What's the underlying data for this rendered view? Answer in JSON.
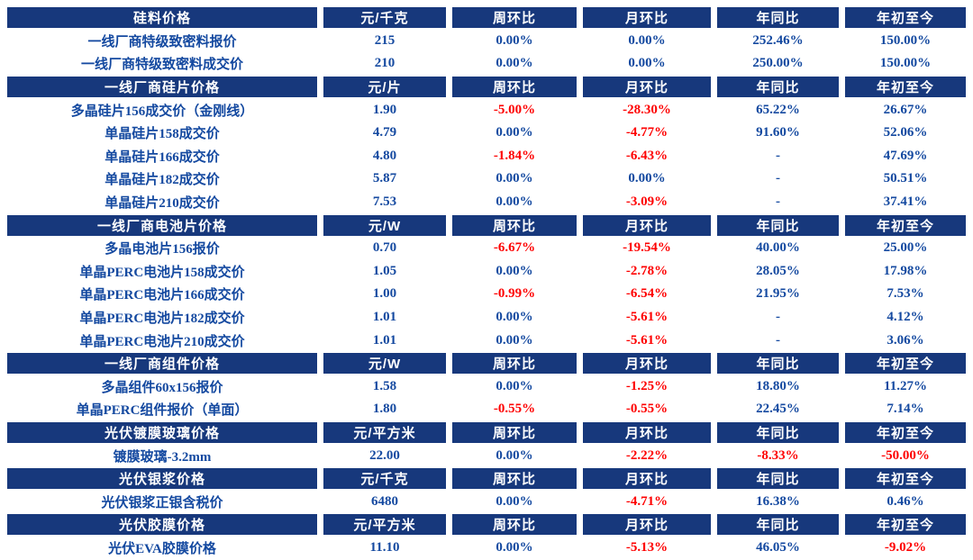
{
  "colors": {
    "header_bg": "#17387C",
    "header_text": "#FFFFFF",
    "value_positive": "#1449A0",
    "value_negative": "#FE0000",
    "page_bg": "#FFFFFF"
  },
  "chart_data": {
    "type": "table",
    "columns": [
      "周环比",
      "月环比",
      "年同比",
      "年初至今"
    ],
    "sections": [
      {
        "title": "硅料价格",
        "unit": "元/千克",
        "rows": [
          {
            "name": "一线厂商特级致密料报价",
            "value": "215",
            "wow": "0.00%",
            "mom": "0.00%",
            "yoy": "252.46%",
            "ytd": "150.00%"
          },
          {
            "name": "一线厂商特级致密料成交价",
            "value": "210",
            "wow": "0.00%",
            "mom": "0.00%",
            "yoy": "250.00%",
            "ytd": "150.00%"
          }
        ]
      },
      {
        "title": "一线厂商硅片价格",
        "unit": "元/片",
        "rows": [
          {
            "name": "多晶硅片156成交价（金刚线）",
            "value": "1.90",
            "wow": "-5.00%",
            "mom": "-28.30%",
            "yoy": "65.22%",
            "ytd": "26.67%"
          },
          {
            "name": "单晶硅片158成交价",
            "value": "4.79",
            "wow": "0.00%",
            "mom": "-4.77%",
            "yoy": "91.60%",
            "ytd": "52.06%"
          },
          {
            "name": "单晶硅片166成交价",
            "value": "4.80",
            "wow": "-1.84%",
            "mom": "-6.43%",
            "yoy": "-",
            "ytd": "47.69%"
          },
          {
            "name": "单晶硅片182成交价",
            "value": "5.87",
            "wow": "0.00%",
            "mom": "0.00%",
            "yoy": "-",
            "ytd": "50.51%"
          },
          {
            "name": "单晶硅片210成交价",
            "value": "7.53",
            "wow": "0.00%",
            "mom": "-3.09%",
            "yoy": "-",
            "ytd": "37.41%"
          }
        ]
      },
      {
        "title": "一线厂商电池片价格",
        "unit": "元/W",
        "rows": [
          {
            "name": "多晶电池片156报价",
            "value": "0.70",
            "wow": "-6.67%",
            "mom": "-19.54%",
            "yoy": "40.00%",
            "ytd": "25.00%"
          },
          {
            "name": "单晶PERC电池片158成交价",
            "value": "1.05",
            "wow": "0.00%",
            "mom": "-2.78%",
            "yoy": "28.05%",
            "ytd": "17.98%"
          },
          {
            "name": "单晶PERC电池片166成交价",
            "value": "1.00",
            "wow": "-0.99%",
            "mom": "-6.54%",
            "yoy": "21.95%",
            "ytd": "7.53%"
          },
          {
            "name": "单晶PERC电池片182成交价",
            "value": "1.01",
            "wow": "0.00%",
            "mom": "-5.61%",
            "yoy": "-",
            "ytd": "4.12%"
          },
          {
            "name": "单晶PERC电池片210成交价",
            "value": "1.01",
            "wow": "0.00%",
            "mom": "-5.61%",
            "yoy": "-",
            "ytd": "3.06%"
          }
        ]
      },
      {
        "title": "一线厂商组件价格",
        "unit": "元/W",
        "rows": [
          {
            "name": "多晶组件60x156报价",
            "value": "1.58",
            "wow": "0.00%",
            "mom": "-1.25%",
            "yoy": "18.80%",
            "ytd": "11.27%"
          },
          {
            "name": "单晶PERC组件报价（单面）",
            "value": "1.80",
            "wow": "-0.55%",
            "mom": "-0.55%",
            "yoy": "22.45%",
            "ytd": "7.14%"
          }
        ]
      },
      {
        "title": "光伏镀膜玻璃价格",
        "unit": "元/平方米",
        "rows": [
          {
            "name": "镀膜玻璃-3.2mm",
            "value": "22.00",
            "wow": "0.00%",
            "mom": "-2.22%",
            "yoy": "-8.33%",
            "ytd": "-50.00%"
          }
        ]
      },
      {
        "title": "光伏银浆价格",
        "unit": "元/千克",
        "rows": [
          {
            "name": "光伏银浆正银含税价",
            "value": "6480",
            "wow": "0.00%",
            "mom": "-4.71%",
            "yoy": "16.38%",
            "ytd": "0.46%"
          }
        ]
      },
      {
        "title": "光伏胶膜价格",
        "unit": "元/平方米",
        "rows": [
          {
            "name": "光伏EVA胶膜价格",
            "value": "11.10",
            "wow": "0.00%",
            "mom": "-5.13%",
            "yoy": "46.05%",
            "ytd": "-9.02%"
          }
        ]
      }
    ]
  }
}
